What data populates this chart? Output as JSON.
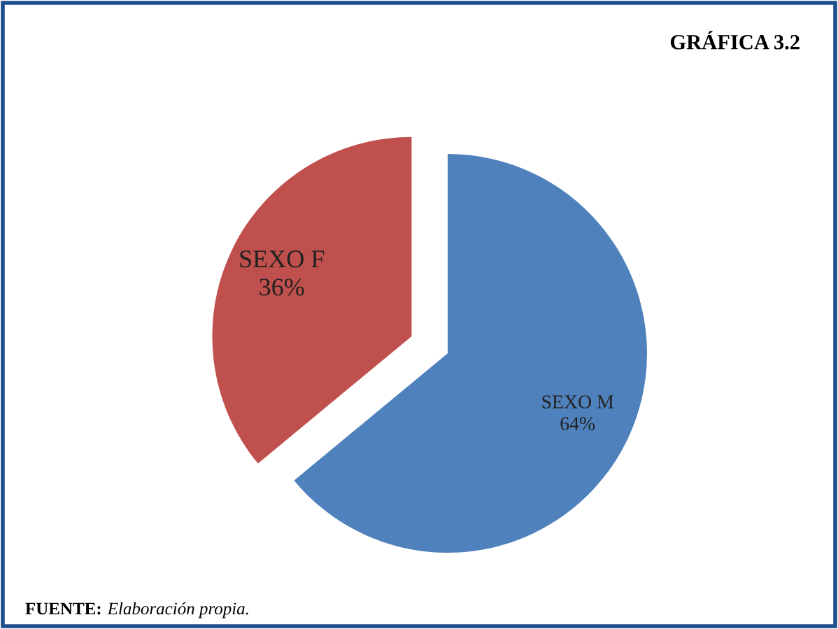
{
  "chart_data": {
    "type": "pie",
    "title": "GRÁFICA 3.2",
    "categories": [
      "SEXO M",
      "SEXO F"
    ],
    "values": [
      64,
      36
    ],
    "value_labels": [
      "64%",
      "36%"
    ],
    "colors": [
      "#4f81bd",
      "#c0504d"
    ],
    "annotations": [
      "FUENTE: Elaboración propia."
    ]
  }
}
